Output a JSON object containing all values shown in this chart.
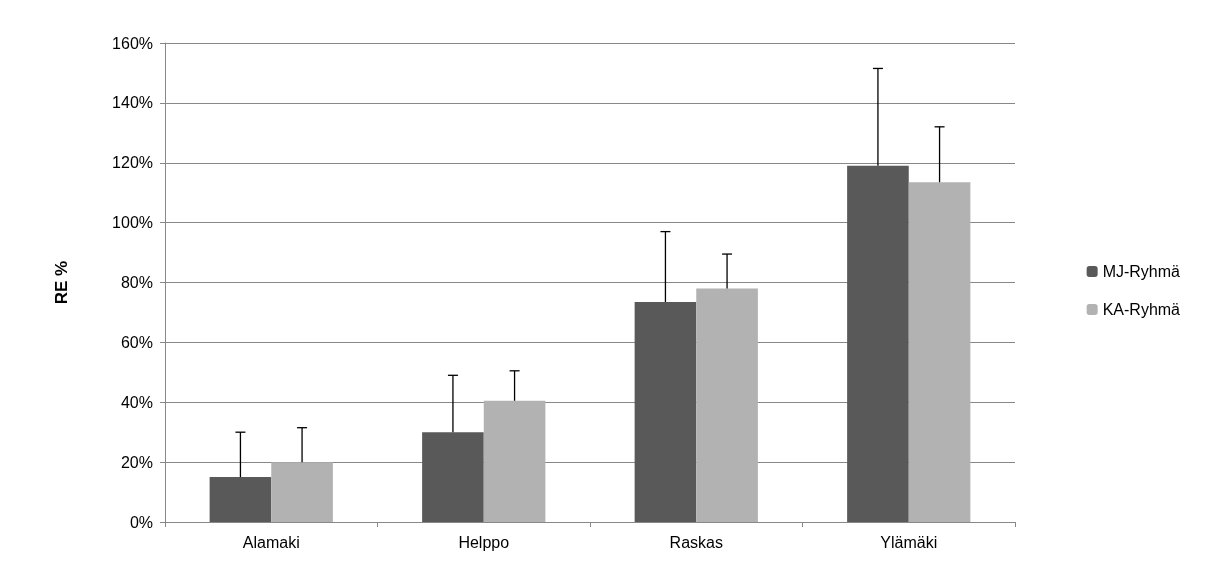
{
  "chart_data": {
    "type": "bar",
    "ylabel": "RE %",
    "categories": [
      "Alamaki",
      "Helppo",
      "Raskas",
      "Ylämäki"
    ],
    "series": [
      {
        "name": "MJ-Ryhmä",
        "color": "#595959",
        "values": [
          15,
          30,
          73.5,
          119
        ],
        "errors": [
          [
            15,
            30
          ],
          [
            30,
            49
          ],
          [
            73.5,
            97
          ],
          [
            119,
            151.5
          ]
        ]
      },
      {
        "name": "KA-Ryhmä",
        "color": "#b2b2b2",
        "values": [
          20,
          40.5,
          78,
          113.5
        ],
        "errors": [
          [
            20,
            31.5
          ],
          [
            40.5,
            50.5
          ],
          [
            78,
            89.5
          ],
          [
            113.5,
            132
          ]
        ]
      }
    ],
    "ylim": [
      0,
      160
    ],
    "yticks": [
      {
        "value": 0,
        "label": "0%"
      },
      {
        "value": 20,
        "label": "20%"
      },
      {
        "value": 40,
        "label": "40%"
      },
      {
        "value": 60,
        "label": "60%"
      },
      {
        "value": 80,
        "label": "80%"
      },
      {
        "value": 100,
        "label": "100%"
      },
      {
        "value": 120,
        "label": "120%"
      },
      {
        "value": 140,
        "label": "140%"
      },
      {
        "value": 160,
        "label": "160%"
      }
    ],
    "grid": "y",
    "legend": "right"
  }
}
